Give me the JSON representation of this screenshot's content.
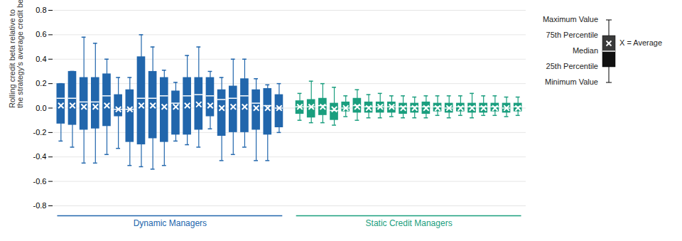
{
  "chart_data": {
    "type": "box",
    "ylabel": "Rolling credit beta relative to\nthe strategy's average credit beta",
    "ylim": [
      -0.8,
      0.8
    ],
    "yticks": [
      -0.8,
      -0.6,
      -0.4,
      -0.2,
      {
        "value": 0,
        "label": "0.0"
      },
      0.2,
      0.4,
      0.6,
      0.8
    ],
    "grid": true,
    "tick_labels": "y",
    "legend": "upper right",
    "annotations": [
      "Maximum Value",
      "75th Percentile",
      "Median",
      "25th Percentile",
      "Minimum Value",
      "X = Average"
    ],
    "series": [
      {
        "name": "Dynamic Managers",
        "color": "#2166ac",
        "boxes": [
          {
            "q1": -0.13,
            "median": 0.08,
            "q3": 0.2,
            "whislo": -0.27,
            "whishi": 0.2,
            "mean": 0.02
          },
          {
            "q1": -0.14,
            "median": 0.08,
            "q3": 0.3,
            "whislo": -0.32,
            "whishi": 0.3,
            "mean": 0.02
          },
          {
            "q1": -0.18,
            "median": 0.05,
            "q3": 0.25,
            "whislo": -0.45,
            "whishi": 0.58,
            "mean": 0.01
          },
          {
            "q1": -0.17,
            "median": 0.05,
            "q3": 0.25,
            "whislo": -0.45,
            "whishi": 0.53,
            "mean": 0.01
          },
          {
            "q1": -0.15,
            "median": 0.1,
            "q3": 0.28,
            "whislo": -0.38,
            "whishi": 0.4,
            "mean": 0.02
          },
          {
            "q1": -0.07,
            "median": -0.01,
            "q3": 0.11,
            "whislo": -0.33,
            "whishi": 0.25,
            "mean": -0.01
          },
          {
            "q1": -0.28,
            "median": -0.01,
            "q3": 0.15,
            "whislo": -0.47,
            "whishi": 0.25,
            "mean": -0.01
          },
          {
            "q1": -0.3,
            "median": 0.08,
            "q3": 0.42,
            "whislo": -0.48,
            "whishi": 0.6,
            "mean": 0.02
          },
          {
            "q1": -0.25,
            "median": 0.08,
            "q3": 0.3,
            "whislo": -0.5,
            "whishi": 0.5,
            "mean": 0.02
          },
          {
            "q1": -0.28,
            "median": 0.1,
            "q3": 0.25,
            "whislo": -0.47,
            "whishi": 0.31,
            "mean": 0.01
          },
          {
            "q1": -0.22,
            "median": 0.04,
            "q3": 0.14,
            "whislo": -0.27,
            "whishi": 0.21,
            "mean": 0.01
          },
          {
            "q1": -0.22,
            "median": 0.1,
            "q3": 0.25,
            "whislo": -0.3,
            "whishi": 0.43,
            "mean": 0.02
          },
          {
            "q1": -0.18,
            "median": 0.11,
            "q3": 0.25,
            "whislo": -0.32,
            "whishi": 0.5,
            "mean": 0.03
          },
          {
            "q1": -0.07,
            "median": 0.1,
            "q3": 0.25,
            "whislo": -0.17,
            "whishi": 0.3,
            "mean": 0.02
          },
          {
            "q1": -0.23,
            "median": 0.07,
            "q3": 0.15,
            "whislo": -0.43,
            "whishi": 0.25,
            "mean": 0.0
          },
          {
            "q1": -0.2,
            "median": 0.08,
            "q3": 0.18,
            "whislo": -0.38,
            "whishi": 0.4,
            "mean": 0.01
          },
          {
            "q1": -0.2,
            "median": 0.1,
            "q3": 0.24,
            "whislo": -0.32,
            "whishi": 0.4,
            "mean": 0.01
          },
          {
            "q1": -0.18,
            "median": 0.04,
            "q3": 0.15,
            "whislo": -0.43,
            "whishi": 0.24,
            "mean": 0.0
          },
          {
            "q1": -0.22,
            "median": 0.02,
            "q3": 0.16,
            "whislo": -0.43,
            "whishi": 0.19,
            "mean": 0.0
          },
          {
            "q1": -0.16,
            "median": 0.0,
            "q3": 0.11,
            "whislo": -0.2,
            "whishi": 0.2,
            "mean": 0.0
          }
        ]
      },
      {
        "name": "Static Credit Managers",
        "color": "#1a9e7e",
        "boxes": [
          {
            "q1": -0.05,
            "median": 0.01,
            "q3": 0.06,
            "whislo": -0.1,
            "whishi": 0.12,
            "mean": 0.01
          },
          {
            "q1": -0.08,
            "median": 0.01,
            "q3": 0.07,
            "whislo": -0.12,
            "whishi": 0.22,
            "mean": 0.01
          },
          {
            "q1": -0.06,
            "median": 0.02,
            "q3": 0.08,
            "whislo": -0.12,
            "whishi": 0.2,
            "mean": 0.01
          },
          {
            "q1": -0.1,
            "median": -0.02,
            "q3": 0.04,
            "whislo": -0.14,
            "whishi": 0.17,
            "mean": -0.01
          },
          {
            "q1": -0.03,
            "median": 0.0,
            "q3": 0.05,
            "whislo": -0.07,
            "whishi": 0.1,
            "mean": 0.0
          },
          {
            "q1": -0.04,
            "median": 0.02,
            "q3": 0.08,
            "whislo": -0.1,
            "whishi": 0.15,
            "mean": 0.01
          },
          {
            "q1": -0.04,
            "median": 0.01,
            "q3": 0.05,
            "whislo": -0.08,
            "whishi": 0.11,
            "mean": 0.0
          },
          {
            "q1": -0.04,
            "median": 0.01,
            "q3": 0.05,
            "whislo": -0.08,
            "whishi": 0.12,
            "mean": 0.01
          },
          {
            "q1": -0.04,
            "median": 0.01,
            "q3": 0.05,
            "whislo": -0.07,
            "whishi": 0.1,
            "mean": 0.01
          },
          {
            "q1": -0.05,
            "median": 0.01,
            "q3": 0.04,
            "whislo": -0.08,
            "whishi": 0.1,
            "mean": 0.0
          },
          {
            "q1": -0.04,
            "median": 0.01,
            "q3": 0.04,
            "whislo": -0.08,
            "whishi": 0.09,
            "mean": 0.0
          },
          {
            "q1": -0.05,
            "median": 0.01,
            "q3": 0.05,
            "whislo": -0.08,
            "whishi": 0.1,
            "mean": 0.0
          },
          {
            "q1": -0.03,
            "median": 0.01,
            "q3": 0.04,
            "whislo": -0.06,
            "whishi": 0.1,
            "mean": 0.0
          },
          {
            "q1": -0.04,
            "median": 0.0,
            "q3": 0.04,
            "whislo": -0.08,
            "whishi": 0.1,
            "mean": 0.0
          },
          {
            "q1": -0.03,
            "median": 0.01,
            "q3": 0.04,
            "whislo": -0.06,
            "whishi": 0.1,
            "mean": 0.0
          },
          {
            "q1": -0.04,
            "median": 0.01,
            "q3": 0.04,
            "whislo": -0.08,
            "whishi": 0.12,
            "mean": 0.0
          },
          {
            "q1": -0.04,
            "median": 0.01,
            "q3": 0.04,
            "whislo": -0.06,
            "whishi": 0.1,
            "mean": 0.0
          },
          {
            "q1": -0.03,
            "median": 0.01,
            "q3": 0.04,
            "whislo": -0.06,
            "whishi": 0.1,
            "mean": 0.0
          },
          {
            "q1": -0.04,
            "median": 0.0,
            "q3": 0.04,
            "whislo": -0.07,
            "whishi": 0.09,
            "mean": 0.0
          },
          {
            "q1": -0.03,
            "median": 0.01,
            "q3": 0.04,
            "whislo": -0.06,
            "whishi": 0.09,
            "mean": 0.0
          }
        ]
      }
    ]
  }
}
